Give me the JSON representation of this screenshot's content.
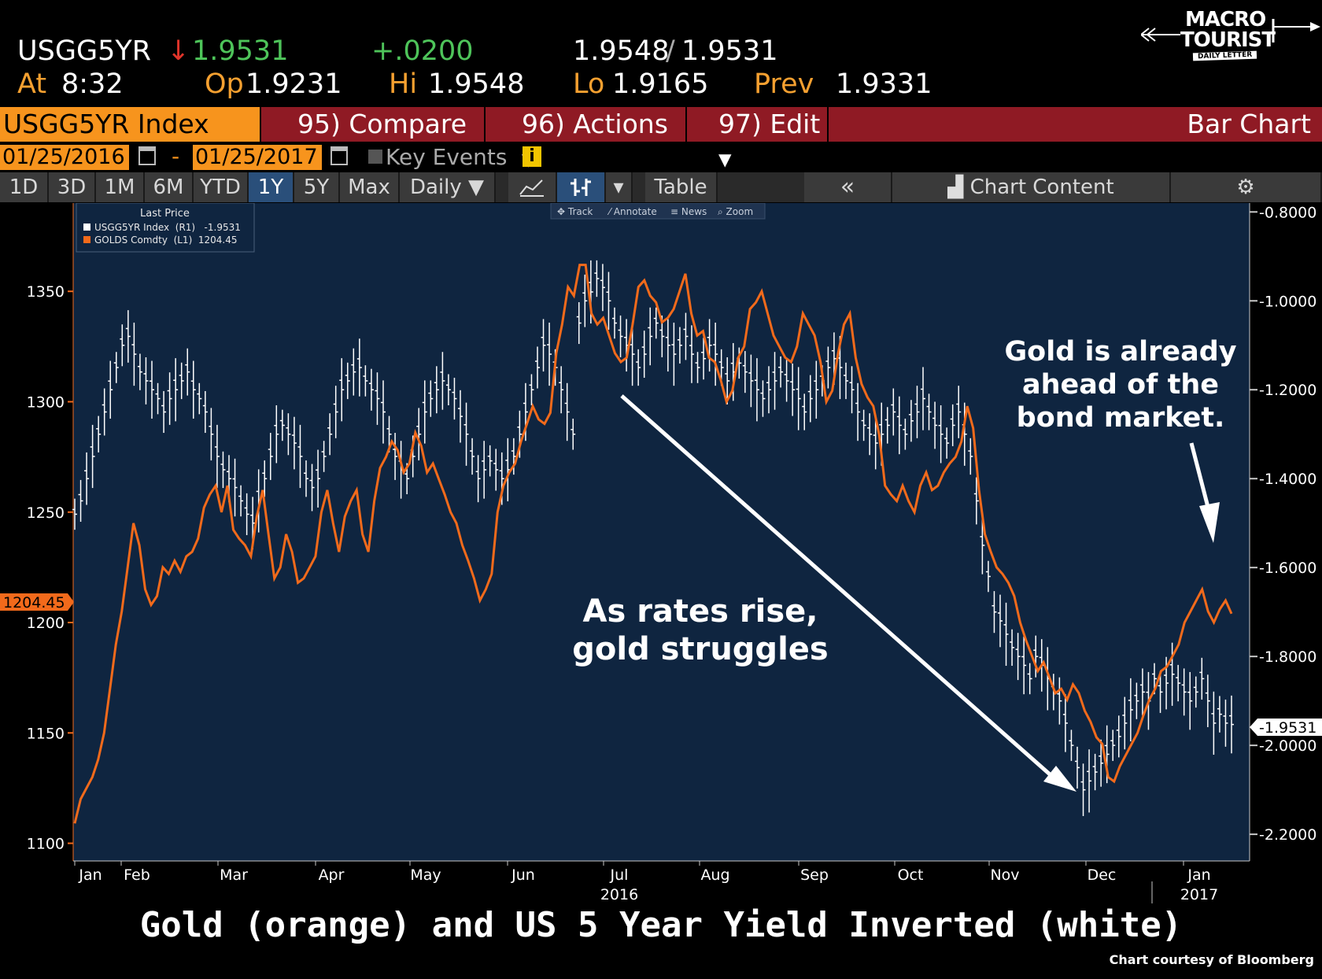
{
  "quote": {
    "ticker": "USGG5YR",
    "arrow": "↓",
    "last": "1.9531",
    "change": "+.0200",
    "bid": "1.9548",
    "ask": "1.9531",
    "at_label": "At",
    "time": "8:32",
    "op_label": "Op",
    "op": "1.9231",
    "hi_label": "Hi",
    "hi": "1.9548",
    "lo_label": "Lo",
    "lo": "1.9165",
    "prev_label": "Prev",
    "prev": "1.9331"
  },
  "logo": {
    "line1": "MACRO",
    "line2": "TOURIST",
    "line3": "DAILY LETTER"
  },
  "titlebar": {
    "index": "USGG5YR Index",
    "compare": "95) Compare",
    "actions": "96) Actions ▾",
    "edit": "97) Edit ▾",
    "chart_type": "Bar Chart"
  },
  "daterange": {
    "start": "01/25/2016",
    "dash": "-",
    "end": "01/25/2017",
    "key_events": "Key Events",
    "info": "i"
  },
  "periods": [
    "1D",
    "3D",
    "1M",
    "6M",
    "YTD",
    "1Y",
    "5Y",
    "Max",
    "Daily ▼"
  ],
  "active_period": "1Y",
  "toolbar": {
    "table": "Table",
    "back": "«",
    "chart_content": "Chart Content",
    "gear": "⚙"
  },
  "chart_tools": [
    "Track",
    "Annotate",
    "News",
    "Zoom"
  ],
  "legend": {
    "title": "Last Price",
    "items": [
      {
        "label": "USGG5YR Index  (R1)   -1.9531",
        "color": "#ffffff"
      },
      {
        "label": "GOLDS Comdty  (L1)  1204.45",
        "color": "#f26a1b"
      }
    ]
  },
  "annotations": {
    "rates": [
      "As rates rise,",
      "gold struggles"
    ],
    "ahead": [
      "Gold is already",
      "ahead of the",
      "bond market."
    ]
  },
  "title": "Gold (orange) and US 5 Year Yield Inverted (white)",
  "credit": "Chart courtesy of Bloomberg",
  "colors": {
    "plot_bg": "#0f2540",
    "gold": "#f26a1b",
    "yield": "#ffffff",
    "accent": "#f7941d",
    "titlebar": "#8f1a24"
  },
  "chart_data": {
    "type": "line",
    "x_labels": [
      "Jan",
      "Feb",
      "Mar",
      "Apr",
      "May",
      "Jun",
      "Jul",
      "Aug",
      "Sep",
      "Oct",
      "Nov",
      "Dec",
      "Jan"
    ],
    "year_labels": [
      "2016",
      "2017"
    ],
    "left_axis": {
      "ticks": [
        1100,
        1150,
        1200,
        1250,
        1300,
        1350
      ],
      "range": [
        1092,
        1390
      ],
      "series": "GOLDS Comdty"
    },
    "right_axis": {
      "ticks": [
        "-0.8000",
        "-1.0000",
        "-1.2000",
        "-1.4000",
        "-1.6000",
        "-1.8000",
        "-2.0000",
        "-2.2000"
      ],
      "range": [
        -0.78,
        -2.26
      ],
      "series": "USGG5YR Index",
      "inverted": true
    },
    "last_labels": {
      "gold": "1204.45",
      "yield": "-1.9531"
    },
    "series": [
      {
        "name": "GOLDS Comdty",
        "axis": "left",
        "values": [
          1109,
          1120,
          1125,
          1130,
          1138,
          1150,
          1170,
          1190,
          1205,
          1225,
          1245,
          1235,
          1215,
          1208,
          1212,
          1225,
          1222,
          1228,
          1223,
          1230,
          1232,
          1238,
          1252,
          1258,
          1262,
          1250,
          1262,
          1242,
          1238,
          1235,
          1230,
          1248,
          1260,
          1240,
          1220,
          1225,
          1240,
          1232,
          1218,
          1220,
          1225,
          1230,
          1250,
          1260,
          1245,
          1232,
          1248,
          1255,
          1260,
          1240,
          1232,
          1255,
          1270,
          1275,
          1282,
          1278,
          1268,
          1272,
          1286,
          1280,
          1268,
          1272,
          1265,
          1258,
          1250,
          1245,
          1235,
          1228,
          1220,
          1210,
          1215,
          1222,
          1250,
          1262,
          1268,
          1272,
          1282,
          1290,
          1298,
          1292,
          1290,
          1295,
          1322,
          1335,
          1352,
          1348,
          1362,
          1362,
          1340,
          1335,
          1338,
          1330,
          1322,
          1318,
          1320,
          1335,
          1352,
          1355,
          1348,
          1345,
          1336,
          1338,
          1342,
          1350,
          1358,
          1340,
          1330,
          1332,
          1320,
          1318,
          1310,
          1300,
          1305,
          1320,
          1325,
          1342,
          1345,
          1350,
          1340,
          1330,
          1325,
          1320,
          1318,
          1325,
          1340,
          1335,
          1330,
          1318,
          1300,
          1305,
          1322,
          1335,
          1340,
          1320,
          1308,
          1302,
          1298,
          1285,
          1262,
          1258,
          1255,
          1262,
          1255,
          1250,
          1262,
          1268,
          1260,
          1262,
          1268,
          1272,
          1275,
          1282,
          1298,
          1288,
          1260,
          1240,
          1232,
          1225,
          1222,
          1218,
          1212,
          1200,
          1192,
          1185,
          1178,
          1182,
          1175,
          1168,
          1170,
          1165,
          1172,
          1168,
          1160,
          1155,
          1148,
          1145,
          1130,
          1128,
          1135,
          1140,
          1145,
          1150,
          1158,
          1165,
          1170,
          1178,
          1180,
          1185,
          1190,
          1200,
          1205,
          1210,
          1215,
          1205,
          1200,
          1206,
          1210,
          1204
        ]
      },
      {
        "name": "USGG5YR Index",
        "axis": "right",
        "values": [
          -1.48,
          -1.45,
          -1.4,
          -1.35,
          -1.3,
          -1.25,
          -1.2,
          -1.15,
          -1.1,
          -1.08,
          -1.12,
          -1.16,
          -1.18,
          -1.2,
          -1.22,
          -1.25,
          -1.22,
          -1.2,
          -1.18,
          -1.16,
          -1.2,
          -1.22,
          -1.25,
          -1.3,
          -1.35,
          -1.38,
          -1.4,
          -1.42,
          -1.45,
          -1.48,
          -1.5,
          -1.45,
          -1.4,
          -1.35,
          -1.3,
          -1.28,
          -1.3,
          -1.32,
          -1.35,
          -1.4,
          -1.42,
          -1.4,
          -1.35,
          -1.3,
          -1.25,
          -1.2,
          -1.18,
          -1.16,
          -1.15,
          -1.18,
          -1.2,
          -1.22,
          -1.25,
          -1.3,
          -1.35,
          -1.38,
          -1.4,
          -1.35,
          -1.3,
          -1.25,
          -1.22,
          -1.2,
          -1.18,
          -1.2,
          -1.22,
          -1.26,
          -1.3,
          -1.35,
          -1.4,
          -1.38,
          -1.36,
          -1.38,
          -1.4,
          -1.38,
          -1.35,
          -1.3,
          -1.25,
          -1.2,
          -1.15,
          -1.1,
          -1.12,
          -1.15,
          -1.2,
          -1.25,
          -1.3,
          -1.05,
          -1.0,
          -0.98,
          -0.95,
          -0.97,
          -1.0,
          -1.05,
          -1.08,
          -1.1,
          -1.12,
          -1.15,
          -1.12,
          -1.08,
          -1.05,
          -1.08,
          -1.1,
          -1.12,
          -1.1,
          -1.08,
          -1.12,
          -1.15,
          -1.13,
          -1.1,
          -1.12,
          -1.15,
          -1.18,
          -1.16,
          -1.14,
          -1.16,
          -1.18,
          -1.2,
          -1.22,
          -1.2,
          -1.18,
          -1.16,
          -1.18,
          -1.2,
          -1.22,
          -1.25,
          -1.22,
          -1.2,
          -1.18,
          -1.15,
          -1.13,
          -1.15,
          -1.18,
          -1.2,
          -1.25,
          -1.28,
          -1.3,
          -1.32,
          -1.3,
          -1.28,
          -1.25,
          -1.28,
          -1.3,
          -1.27,
          -1.25,
          -1.22,
          -1.25,
          -1.28,
          -1.3,
          -1.32,
          -1.28,
          -1.25,
          -1.3,
          -1.35,
          -1.45,
          -1.55,
          -1.62,
          -1.7,
          -1.72,
          -1.75,
          -1.78,
          -1.8,
          -1.82,
          -1.85,
          -1.8,
          -1.82,
          -1.85,
          -1.88,
          -1.9,
          -1.95,
          -2.0,
          -2.05,
          -2.1,
          -2.08,
          -2.06,
          -2.04,
          -2.02,
          -2.0,
          -1.98,
          -1.95,
          -1.92,
          -1.9,
          -1.88,
          -1.9,
          -1.85,
          -1.88,
          -1.86,
          -1.84,
          -1.86,
          -1.88,
          -1.9,
          -1.88,
          -1.85,
          -1.9,
          -1.95,
          -1.93,
          -1.95,
          -1.953
        ]
      }
    ]
  }
}
